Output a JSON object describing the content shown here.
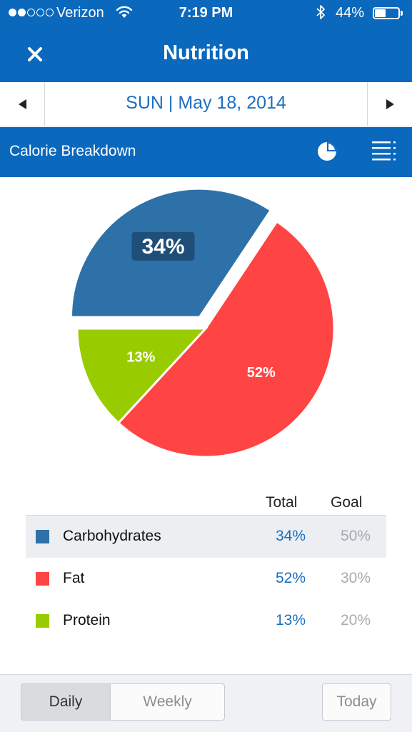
{
  "status_bar": {
    "carrier": "Verizon",
    "time": "7:19 PM",
    "battery_pct": "44%",
    "battery_level": 0.44,
    "signal_bars_filled": 2,
    "signal_bars_total": 5
  },
  "nav": {
    "title": "Nutrition",
    "close_icon": "close-icon"
  },
  "date_bar": {
    "date": "SUN | May 18, 2014",
    "prev_icon": "triangle-left-icon",
    "next_icon": "triangle-right-icon"
  },
  "section": {
    "title": "Calorie Breakdown",
    "icons": [
      "pie-chart-icon",
      "list-icon"
    ]
  },
  "chart_data": {
    "type": "pie",
    "slices": [
      {
        "label": "Carbohydrates",
        "value": 34,
        "display": "34%",
        "color": "#2e71a9"
      },
      {
        "label": "Fat",
        "value": 52,
        "display": "52%",
        "color": "#ff4444"
      },
      {
        "label": "Protein",
        "value": 13,
        "display": "13%",
        "color": "#99cc00"
      }
    ],
    "highlighted_slice": "Carbohydrates"
  },
  "table": {
    "columns": [
      "Total",
      "Goal"
    ],
    "rows": [
      {
        "name": "Carbohydrates",
        "total": "34%",
        "goal": "50%",
        "color": "#2e71a9"
      },
      {
        "name": "Fat",
        "total": "52%",
        "goal": "30%",
        "color": "#ff4444"
      },
      {
        "name": "Protein",
        "total": "13%",
        "goal": "20%",
        "color": "#99cc00"
      }
    ]
  },
  "bottom_bar": {
    "segments": [
      "Daily",
      "Weekly"
    ],
    "selected_segment": "Daily",
    "today_label": "Today"
  },
  "colors": {
    "primary": "#0a68bd",
    "link": "#1c6fbf",
    "muted": "#a7abb0"
  }
}
